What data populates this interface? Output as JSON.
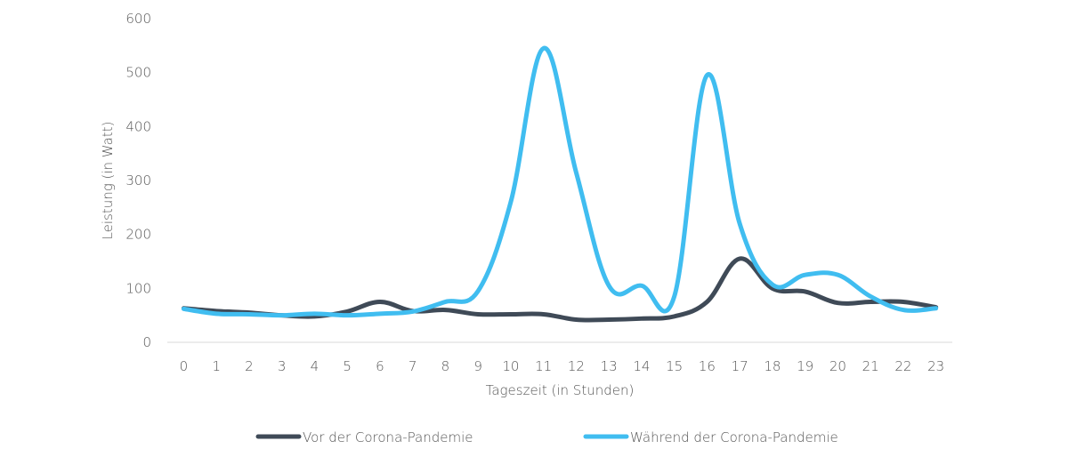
{
  "chart_data": {
    "type": "line",
    "xlabel": "Tageszeit (in Stunden)",
    "ylabel": "Leistung (in Watt)",
    "ylim": [
      0,
      600
    ],
    "yticks": [
      0,
      100,
      200,
      300,
      400,
      500,
      600
    ],
    "x": [
      0,
      1,
      2,
      3,
      4,
      5,
      6,
      7,
      8,
      9,
      10,
      11,
      12,
      13,
      14,
      15,
      16,
      17,
      18,
      19,
      20,
      21,
      22,
      23
    ],
    "legend_position": "bottom",
    "grid": false,
    "series": [
      {
        "name": "Vor der Corona-Pandemie",
        "color": "#3f4a57",
        "values": [
          63,
          58,
          55,
          50,
          48,
          57,
          75,
          58,
          60,
          52,
          52,
          52,
          42,
          42,
          44,
          48,
          75,
          155,
          100,
          94,
          73,
          75,
          75,
          65
        ]
      },
      {
        "name": "Während der Corona-Pandemie",
        "color": "#40bdf0",
        "values": [
          62,
          53,
          52,
          50,
          53,
          50,
          53,
          57,
          75,
          95,
          260,
          545,
          315,
          105,
          105,
          85,
          495,
          220,
          107,
          125,
          125,
          85,
          60,
          63
        ]
      }
    ]
  }
}
